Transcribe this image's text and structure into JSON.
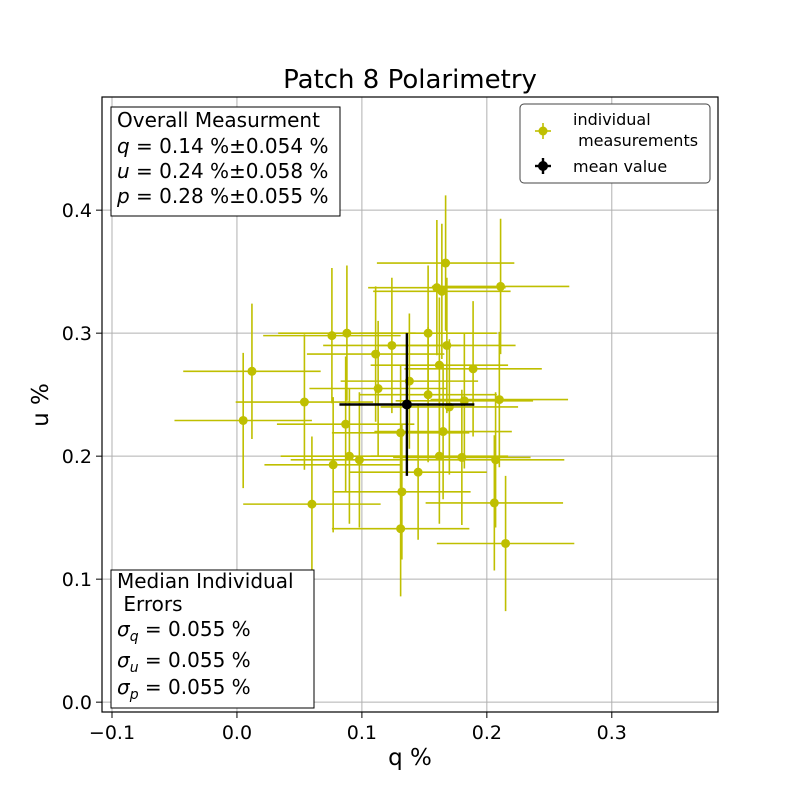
{
  "chart_data": {
    "type": "scatter",
    "title": "Patch 8 Polarimetry",
    "xlabel": "q %",
    "ylabel": "u %",
    "xlim": [
      -0.108,
      0.385
    ],
    "ylim": [
      -0.008,
      0.492
    ],
    "xticks": [
      -0.1,
      0.0,
      0.1,
      0.2,
      0.3
    ],
    "xtick_labels": [
      "−0.1",
      "0.0",
      "0.1",
      "0.2",
      "0.3"
    ],
    "yticks": [
      0.0,
      0.1,
      0.2,
      0.3,
      0.4
    ],
    "ytick_labels": [
      "0.0",
      "0.1",
      "0.2",
      "0.3",
      "0.4"
    ],
    "grid": true,
    "colors": {
      "individual": "#bfbf00",
      "mean": "#000000"
    },
    "legend": {
      "placement": "top-right",
      "entries": [
        {
          "label_lines": [
            "individual",
            " measurements"
          ],
          "series": "individual"
        },
        {
          "label_lines": [
            "mean value"
          ],
          "series": "mean"
        }
      ]
    },
    "overall_box": {
      "placement": "top-left",
      "heading": "Overall Measurment",
      "lines": [
        {
          "var": "q",
          "text": " = 0.14 %±0.054 %"
        },
        {
          "var": "u",
          "text": " = 0.24 %±0.058 %"
        },
        {
          "var": "p",
          "text": " = 0.28 %±0.055 %"
        }
      ]
    },
    "median_box": {
      "placement": "bottom-left",
      "heading_lines": [
        "Median Individual",
        " Errors"
      ],
      "lines": [
        {
          "sigma": "σ",
          "sub": "q",
          "text": " = 0.055 %"
        },
        {
          "sigma": "σ",
          "sub": "u",
          "text": " = 0.055 %"
        },
        {
          "sigma": "σ",
          "sub": "p",
          "text": " = 0.055 %"
        }
      ]
    },
    "series": [
      {
        "name": "individual measurements",
        "points": [
          {
            "q": 0.167,
            "u": 0.357,
            "qerr": 0.055,
            "uerr": 0.055
          },
          {
            "q": 0.211,
            "u": 0.338,
            "qerr": 0.055,
            "uerr": 0.055
          },
          {
            "q": 0.16,
            "u": 0.337,
            "qerr": 0.055,
            "uerr": 0.055
          },
          {
            "q": 0.164,
            "u": 0.334,
            "qerr": 0.055,
            "uerr": 0.055
          },
          {
            "q": 0.153,
            "u": 0.3,
            "qerr": 0.055,
            "uerr": 0.055
          },
          {
            "q": 0.088,
            "u": 0.3,
            "qerr": 0.055,
            "uerr": 0.055
          },
          {
            "q": 0.076,
            "u": 0.298,
            "qerr": 0.055,
            "uerr": 0.055
          },
          {
            "q": 0.124,
            "u": 0.29,
            "qerr": 0.055,
            "uerr": 0.055
          },
          {
            "q": 0.168,
            "u": 0.29,
            "qerr": 0.055,
            "uerr": 0.055
          },
          {
            "q": 0.111,
            "u": 0.283,
            "qerr": 0.055,
            "uerr": 0.055
          },
          {
            "q": 0.162,
            "u": 0.274,
            "qerr": 0.055,
            "uerr": 0.055
          },
          {
            "q": 0.189,
            "u": 0.271,
            "qerr": 0.055,
            "uerr": 0.055
          },
          {
            "q": 0.012,
            "u": 0.269,
            "qerr": 0.055,
            "uerr": 0.055
          },
          {
            "q": 0.138,
            "u": 0.261,
            "qerr": 0.055,
            "uerr": 0.055
          },
          {
            "q": 0.113,
            "u": 0.255,
            "qerr": 0.055,
            "uerr": 0.055
          },
          {
            "q": 0.153,
            "u": 0.25,
            "qerr": 0.055,
            "uerr": 0.055
          },
          {
            "q": 0.21,
            "u": 0.246,
            "qerr": 0.055,
            "uerr": 0.055
          },
          {
            "q": 0.182,
            "u": 0.245,
            "qerr": 0.055,
            "uerr": 0.055
          },
          {
            "q": 0.054,
            "u": 0.244,
            "qerr": 0.055,
            "uerr": 0.055
          },
          {
            "q": 0.17,
            "u": 0.24,
            "qerr": 0.055,
            "uerr": 0.055
          },
          {
            "q": 0.005,
            "u": 0.229,
            "qerr": 0.055,
            "uerr": 0.055
          },
          {
            "q": 0.087,
            "u": 0.226,
            "qerr": 0.055,
            "uerr": 0.055
          },
          {
            "q": 0.165,
            "u": 0.22,
            "qerr": 0.055,
            "uerr": 0.055
          },
          {
            "q": 0.131,
            "u": 0.219,
            "qerr": 0.055,
            "uerr": 0.055
          },
          {
            "q": 0.09,
            "u": 0.2,
            "qerr": 0.055,
            "uerr": 0.055
          },
          {
            "q": 0.162,
            "u": 0.2,
            "qerr": 0.055,
            "uerr": 0.055
          },
          {
            "q": 0.18,
            "u": 0.199,
            "qerr": 0.055,
            "uerr": 0.055
          },
          {
            "q": 0.207,
            "u": 0.197,
            "qerr": 0.055,
            "uerr": 0.055
          },
          {
            "q": 0.098,
            "u": 0.197,
            "qerr": 0.055,
            "uerr": 0.055
          },
          {
            "q": 0.077,
            "u": 0.193,
            "qerr": 0.055,
            "uerr": 0.055
          },
          {
            "q": 0.145,
            "u": 0.187,
            "qerr": 0.055,
            "uerr": 0.055
          },
          {
            "q": 0.132,
            "u": 0.171,
            "qerr": 0.055,
            "uerr": 0.055
          },
          {
            "q": 0.206,
            "u": 0.162,
            "qerr": 0.055,
            "uerr": 0.055
          },
          {
            "q": 0.06,
            "u": 0.161,
            "qerr": 0.055,
            "uerr": 0.055
          },
          {
            "q": 0.131,
            "u": 0.141,
            "qerr": 0.055,
            "uerr": 0.055
          },
          {
            "q": 0.215,
            "u": 0.129,
            "qerr": 0.055,
            "uerr": 0.055
          }
        ]
      },
      {
        "name": "mean value",
        "points": [
          {
            "q": 0.136,
            "u": 0.242,
            "qerr": 0.054,
            "uerr": 0.058
          }
        ]
      }
    ]
  }
}
